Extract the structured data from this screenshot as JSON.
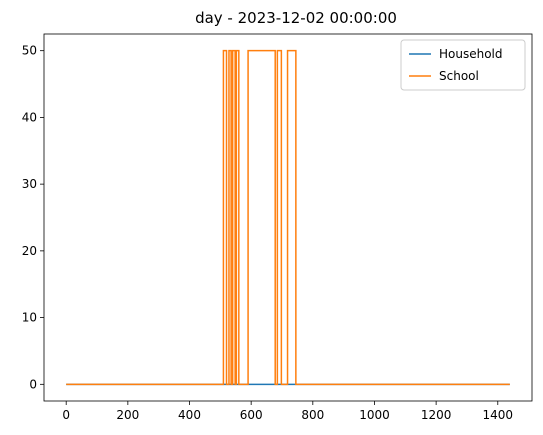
{
  "chart_data": {
    "type": "line",
    "title": "day - 2023-12-02 00:00:00",
    "xlabel": "",
    "ylabel": "",
    "xlim": [
      -72,
      1511
    ],
    "ylim": [
      -2.5,
      52.5
    ],
    "xticks": [
      0,
      200,
      400,
      600,
      800,
      1000,
      1200,
      1400
    ],
    "yticks": [
      0,
      10,
      20,
      30,
      40,
      50
    ],
    "grid": false,
    "legend": "top-right",
    "series": [
      {
        "name": "Household",
        "color": "#1f77b4",
        "drawstyle": "steps-post",
        "x": [
          0,
          1439
        ],
        "y": [
          0,
          0
        ]
      },
      {
        "name": "School",
        "color": "#ff7f0e",
        "drawstyle": "steps-post",
        "x": [
          0,
          510,
          520,
          528,
          535,
          540,
          548,
          552,
          560,
          590,
          678,
          685,
          698,
          712,
          718,
          745,
          1439
        ],
        "y": [
          0,
          50,
          0,
          50,
          0,
          50,
          0,
          50,
          0,
          50,
          0,
          50,
          0,
          0,
          50,
          0,
          0
        ]
      }
    ]
  }
}
